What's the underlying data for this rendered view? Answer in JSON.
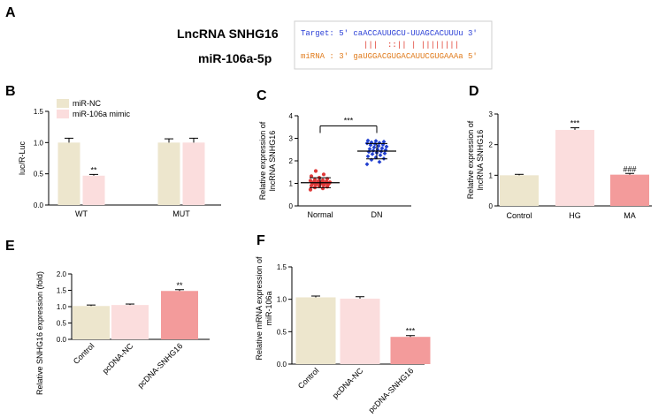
{
  "panel_labels": {
    "A": "A",
    "B": "B",
    "C": "C",
    "D": "D",
    "E": "E",
    "F": "F"
  },
  "seq": {
    "gene": "LncRNA SNHG16",
    "mirna_name": "miR-106a-5p",
    "target_line": "Target: 5' caACCAUUGCU-UUAGCACUUUu 3'",
    "match_line": "|||  ::|| | ||||||||",
    "mirna_line": "miRNA : 3' gaUGGACGUGACAUUCGUGAAAa 5'",
    "colors": {
      "target": "#2a3fd6",
      "match": "#e03a2c",
      "mirna": "#e07b1c"
    }
  },
  "chart_data": [
    {
      "panel": "B",
      "type": "bar",
      "categories": [
        "WT",
        "MUT"
      ],
      "series": [
        {
          "name": "miR-NC",
          "values": [
            1.0,
            1.0
          ],
          "errors": [
            0.07,
            0.06
          ],
          "color": "#ede6cd"
        },
        {
          "name": "miR-106a mimic",
          "values": [
            0.47,
            1.0
          ],
          "errors": [
            0.02,
            0.07
          ],
          "color": "#fbdddd"
        }
      ],
      "annotations": [
        "**"
      ],
      "ylabel": "luc/R-Luc",
      "ylim": [
        0,
        1.5
      ],
      "yticks": [
        "0.0",
        "0.5",
        "1.0",
        "1.5"
      ],
      "legend": "top-left"
    },
    {
      "panel": "C",
      "type": "scatter",
      "categories": [
        "Normal",
        "DN"
      ],
      "means": [
        1.03,
        2.43
      ],
      "sd": [
        0.22,
        0.34
      ],
      "ylabel_line1": "Relative expression of",
      "ylabel_line2": "lncRNA SNHG16",
      "ylim": [
        0,
        4
      ],
      "yticks": [
        "0",
        "1",
        "2",
        "3",
        "4"
      ],
      "annotation": "***",
      "colors": [
        "#e03a3a",
        "#2240d0"
      ],
      "points": [
        [
          0.72,
          0.78,
          0.82,
          0.85,
          0.88,
          0.9,
          0.92,
          0.94,
          0.95,
          0.96,
          0.97,
          0.98,
          0.99,
          1.0,
          1.01,
          1.02,
          1.03,
          1.04,
          1.05,
          1.06,
          1.07,
          1.08,
          1.1,
          1.12,
          1.14,
          1.16,
          1.2,
          1.25,
          1.32,
          1.4,
          1.55
        ],
        [
          1.85,
          1.95,
          2.05,
          2.1,
          2.15,
          2.2,
          2.25,
          2.3,
          2.33,
          2.36,
          2.4,
          2.42,
          2.45,
          2.48,
          2.5,
          2.53,
          2.56,
          2.6,
          2.63,
          2.66,
          2.7,
          2.72,
          2.75,
          2.78,
          2.8,
          2.82,
          2.85,
          2.88,
          2.9
        ]
      ]
    },
    {
      "panel": "D",
      "type": "bar",
      "categories": [
        "Control",
        "HG",
        "MA"
      ],
      "values": [
        1.0,
        2.48,
        1.02
      ],
      "errors": [
        0.03,
        0.07,
        0.04
      ],
      "colors": [
        "#ede6cd",
        "#fbdddd",
        "#f39b9b"
      ],
      "annotations": [
        "",
        "***",
        "###"
      ],
      "ylabel_line1": "Relative expression of",
      "ylabel_line2": "lncRNA SNHG16",
      "ylim": [
        0,
        3
      ],
      "yticks": [
        "0",
        "1",
        "2",
        "3"
      ]
    },
    {
      "panel": "E",
      "type": "bar",
      "categories": [
        "Control",
        "pcDNA-NC",
        "pcDNA-SNHG16"
      ],
      "values": [
        1.02,
        1.05,
        1.48
      ],
      "errors": [
        0.03,
        0.03,
        0.04
      ],
      "colors": [
        "#ede6cd",
        "#fbdddd",
        "#f39b9b"
      ],
      "annotations": [
        "",
        "",
        "**"
      ],
      "ylabel": "Relative SNHG16 expression (fold)",
      "ylim": [
        0,
        2.0
      ],
      "yticks": [
        "0.0",
        "0.5",
        "1.0",
        "1.5",
        "2.0"
      ]
    },
    {
      "panel": "F",
      "type": "bar",
      "categories": [
        "Control",
        "pcDNA-NC",
        "pcDNA-SNHG16"
      ],
      "values": [
        1.03,
        1.01,
        0.42
      ],
      "errors": [
        0.02,
        0.03,
        0.02
      ],
      "colors": [
        "#ede6cd",
        "#fbdddd",
        "#f39b9b"
      ],
      "annotations": [
        "",
        "",
        "***"
      ],
      "ylabel_line1": "Relative mRNA expression of",
      "ylabel_line2": "miR-106a",
      "ylim": [
        0,
        1.5
      ],
      "yticks": [
        "0.0",
        "0.5",
        "1.0",
        "1.5"
      ]
    }
  ]
}
